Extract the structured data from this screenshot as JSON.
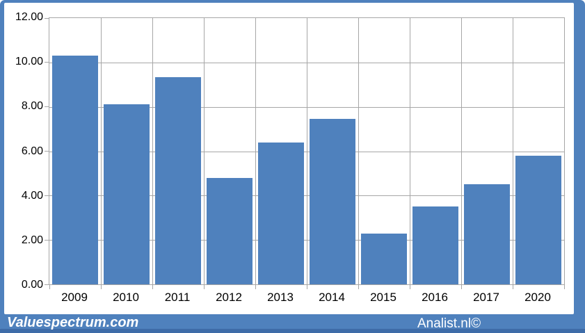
{
  "footer": {
    "left_text": "Valuespectrum.com",
    "right_text": "Analist.nl©"
  },
  "colors": {
    "accent_blue": "#4f81bd",
    "gridline_gray": "#a6a6a6",
    "plot_background": "#ffffff",
    "footer_text": "#ffffff",
    "footer_dark_strip": "#3e6ca8",
    "label_text": "#000000"
  },
  "chart_data": {
    "type": "bar",
    "title": "",
    "xlabel": "",
    "ylabel": "",
    "categories": [
      "2009",
      "2010",
      "2011",
      "2012",
      "2013",
      "2014",
      "2015",
      "2016",
      "2017",
      "2020"
    ],
    "values": [
      10.3,
      8.1,
      9.35,
      4.8,
      6.4,
      7.45,
      2.3,
      3.5,
      4.5,
      5.8
    ],
    "ylim": [
      0,
      12
    ],
    "ytick_values": [
      12,
      10,
      8,
      6,
      4,
      2,
      0
    ],
    "ytick_labels": [
      "12.00",
      "10.00",
      "8.00",
      "6.00",
      "4.00",
      "2.00",
      "0.00"
    ],
    "grid": true,
    "legend": "none",
    "bar_color": "#4f81bd",
    "gridline_color": "#a6a6a6"
  }
}
